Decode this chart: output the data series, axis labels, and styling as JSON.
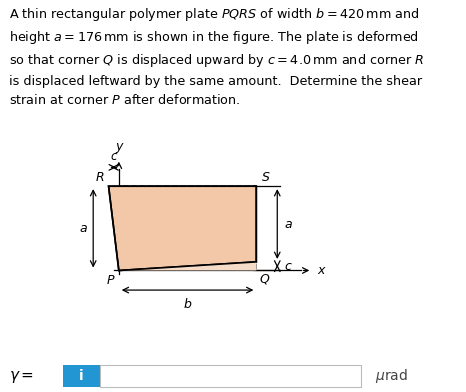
{
  "background_color": "#ffffff",
  "plate_fill_color": "#f2c8a8",
  "plate_fill_color2": "#f5dcc8",
  "plate_edge_color": "#000000",
  "answer_box_color": "#2196d3",
  "fig_width": 4.66,
  "fig_height": 3.92,
  "dpi": 100,
  "text_lines": [
    "A thin rectangular polymer plate $PQRS$ of width $b =  420\\,\\mathrm{mm}$ and",
    "height $a =  176\\,\\mathrm{mm}$ is shown in the figure. The plate is deformed",
    "so that corner $Q$ is displaced upward by $c =  4.0\\,\\mathrm{mm}$ and corner $R$",
    "is displaced leftward by the same amount.  Determine the shear",
    "strain at corner $P$ after deformation."
  ],
  "ox": 0.255,
  "oy": 0.31,
  "bw": 0.295,
  "bh": 0.215,
  "cc": 0.022
}
